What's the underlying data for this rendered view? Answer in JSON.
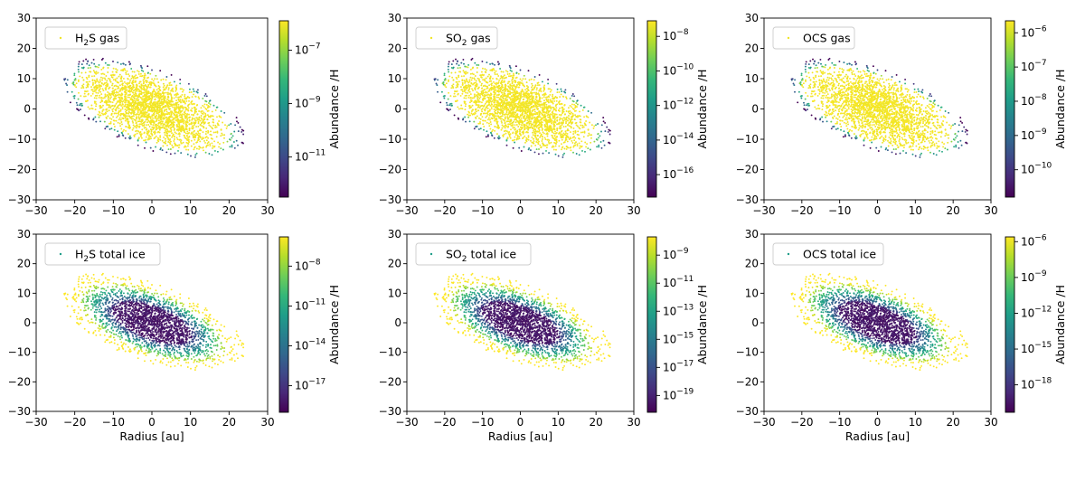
{
  "chart_data": [
    {
      "type": "scatter",
      "legend": [
        "H",
        "2",
        "S gas"
      ],
      "xlabel": "",
      "colorbar_label": "Abundance /H",
      "colorbar_ticks": [
        [
          "10",
          "−7"
        ],
        [
          "10",
          "−9"
        ],
        [
          "10",
          "−11"
        ]
      ],
      "colorbar_tick_exp": [
        -7,
        -9,
        -11
      ],
      "colorbar_range_exp": [
        -12.5,
        -5.9
      ],
      "mode": "gas",
      "xlim": [
        -30,
        30
      ],
      "ylim": [
        -30,
        30
      ],
      "xticks": [
        "−30",
        "−20",
        "−10",
        "0",
        "10",
        "20",
        "30"
      ],
      "yticks": [
        "30",
        "20",
        "10",
        "0",
        "−10",
        "−20",
        "−30"
      ],
      "legend_placement": "upper-left"
    },
    {
      "type": "scatter",
      "legend": [
        "SO",
        "2",
        " gas"
      ],
      "xlabel": "",
      "colorbar_label": "Abundance /H",
      "colorbar_ticks": [
        [
          "10",
          "−8"
        ],
        [
          "10",
          "−10"
        ],
        [
          "10",
          "−12"
        ],
        [
          "10",
          "−14"
        ],
        [
          "10",
          "−16"
        ]
      ],
      "colorbar_tick_exp": [
        -8,
        -10,
        -12,
        -14,
        -16
      ],
      "colorbar_range_exp": [
        -17.3,
        -7.1
      ],
      "mode": "gas",
      "xlim": [
        -30,
        30
      ],
      "ylim": [
        -30,
        30
      ],
      "xticks": [
        "−30",
        "−20",
        "−10",
        "0",
        "10",
        "20",
        "30"
      ],
      "yticks": [
        "30",
        "20",
        "10",
        "0",
        "−10",
        "−20",
        "−30"
      ],
      "legend_placement": "upper-left"
    },
    {
      "type": "scatter",
      "legend": [
        "OCS gas",
        "",
        ""
      ],
      "xlabel": "",
      "colorbar_label": "Abundance /H",
      "colorbar_ticks": [
        [
          "10",
          "−6"
        ],
        [
          "10",
          "−7"
        ],
        [
          "10",
          "−8"
        ],
        [
          "10",
          "−9"
        ],
        [
          "10",
          "−10"
        ]
      ],
      "colorbar_tick_exp": [
        -6,
        -7,
        -8,
        -9,
        -10
      ],
      "colorbar_range_exp": [
        -10.8,
        -5.65
      ],
      "mode": "gas",
      "xlim": [
        -30,
        30
      ],
      "ylim": [
        -30,
        30
      ],
      "xticks": [
        "−30",
        "−20",
        "−10",
        "0",
        "10",
        "20",
        "30"
      ],
      "yticks": [
        "30",
        "20",
        "10",
        "0",
        "−10",
        "−20",
        "−30"
      ],
      "legend_placement": "upper-left"
    },
    {
      "type": "scatter",
      "legend": [
        "H",
        "2",
        "S total ice"
      ],
      "xlabel": "Radius [au]",
      "colorbar_label": "Abundance /H",
      "colorbar_ticks": [
        [
          "10",
          "−8"
        ],
        [
          "10",
          "−11"
        ],
        [
          "10",
          "−14"
        ],
        [
          "10",
          "−17"
        ]
      ],
      "colorbar_tick_exp": [
        -8,
        -11,
        -14,
        -17
      ],
      "colorbar_range_exp": [
        -19,
        -5.8
      ],
      "mode": "ice",
      "xlim": [
        -30,
        30
      ],
      "ylim": [
        -30,
        30
      ],
      "xticks": [
        "−30",
        "−20",
        "−10",
        "0",
        "10",
        "20",
        "30"
      ],
      "yticks": [
        "30",
        "20",
        "10",
        "0",
        "−10",
        "−20",
        "−30"
      ],
      "legend_placement": "upper-left"
    },
    {
      "type": "scatter",
      "legend": [
        "SO",
        "2",
        " total ice"
      ],
      "xlabel": "Radius [au]",
      "colorbar_label": "Abundance /H",
      "colorbar_ticks": [
        [
          "10",
          "−9"
        ],
        [
          "10",
          "−11"
        ],
        [
          "10",
          "−13"
        ],
        [
          "10",
          "−15"
        ],
        [
          "10",
          "−17"
        ],
        [
          "10",
          "−19"
        ]
      ],
      "colorbar_tick_exp": [
        -9,
        -11,
        -13,
        -15,
        -17,
        -19
      ],
      "colorbar_range_exp": [
        -20.2,
        -7.7
      ],
      "mode": "ice",
      "xlim": [
        -30,
        30
      ],
      "ylim": [
        -30,
        30
      ],
      "xticks": [
        "−30",
        "−20",
        "−10",
        "0",
        "10",
        "20",
        "30"
      ],
      "yticks": [
        "30",
        "20",
        "10",
        "0",
        "−10",
        "−20",
        "−30"
      ],
      "legend_placement": "upper-left"
    },
    {
      "type": "scatter",
      "legend": [
        "OCS total ice",
        "",
        ""
      ],
      "xlabel": "Radius [au]",
      "colorbar_label": "Abundance /H",
      "colorbar_ticks": [
        [
          "10",
          "−6"
        ],
        [
          "10",
          "−9"
        ],
        [
          "10",
          "−12"
        ],
        [
          "10",
          "−15"
        ],
        [
          "10",
          "−18"
        ]
      ],
      "colorbar_tick_exp": [
        -6,
        -9,
        -12,
        -15,
        -18
      ],
      "colorbar_range_exp": [
        -20.3,
        -5.6
      ],
      "mode": "ice",
      "xlim": [
        -30,
        30
      ],
      "ylim": [
        -30,
        30
      ],
      "xticks": [
        "−30",
        "−20",
        "−10",
        "0",
        "10",
        "20",
        "30"
      ],
      "yticks": [
        "30",
        "20",
        "10",
        "0",
        "−10",
        "−20",
        "−30"
      ],
      "legend_placement": "upper-left"
    }
  ],
  "colormap": [
    "#440154",
    "#482878",
    "#3e4989",
    "#31688e",
    "#26828e",
    "#1f9e89",
    "#35b779",
    "#6ece58",
    "#b5de2b",
    "#fde725"
  ]
}
